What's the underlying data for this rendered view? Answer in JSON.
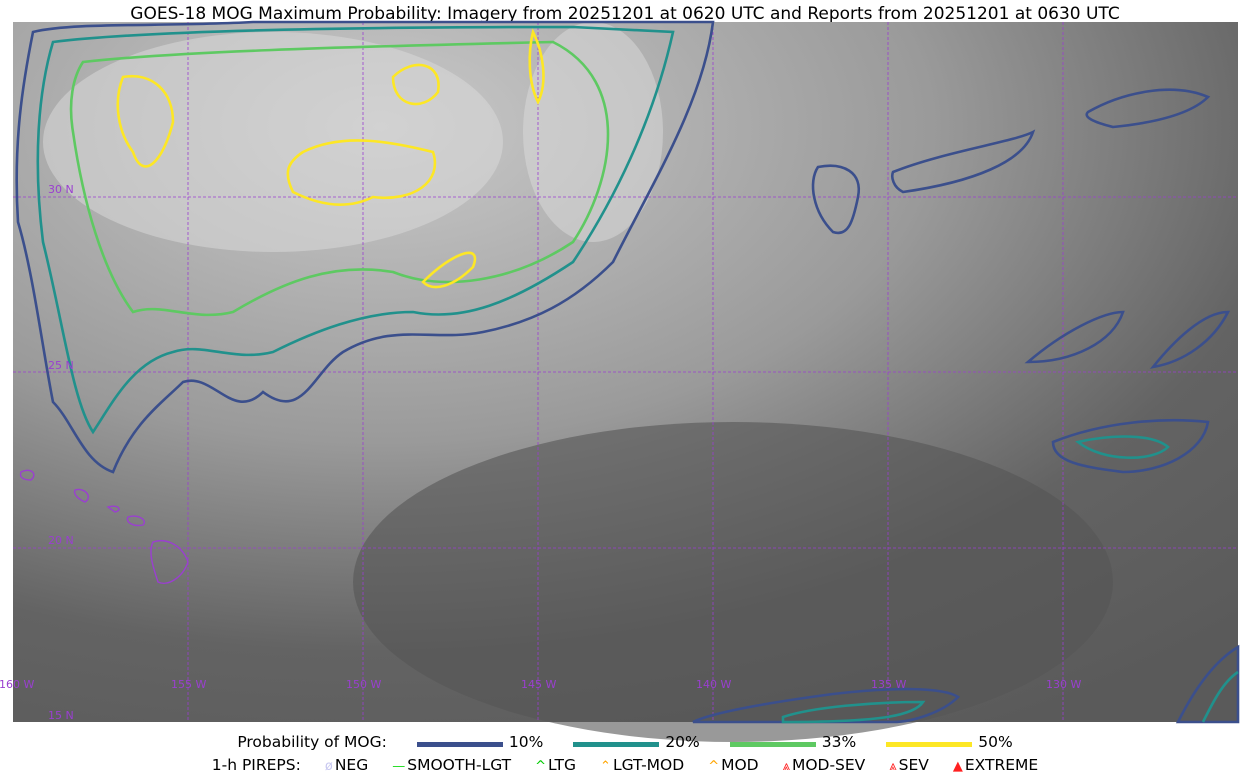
{
  "title": "GOES-18 MOG Maximum Probability: Imagery from 20251201 at 0620 UTC and Reports from 20251201 at 0630 UTC",
  "map": {
    "longitude_labels": [
      "160 W",
      "155 W",
      "150 W",
      "145 W",
      "140 W",
      "135 W",
      "130 W"
    ],
    "latitude_labels": [
      "30 N",
      "25 N",
      "20 N",
      "15 N"
    ],
    "grid_color": "#9a3fd0",
    "coastline_color": "#9a3fd0"
  },
  "legend": {
    "probability_label": "Probability of MOG:",
    "levels": [
      {
        "label": "10%",
        "color": "#3b4f8c"
      },
      {
        "label": "20%",
        "color": "#21918c"
      },
      {
        "label": "33%",
        "color": "#5ec962"
      },
      {
        "label": "50%",
        "color": "#fde725"
      }
    ],
    "pireps_label": "1-h PIREPS:",
    "pireps": [
      {
        "label": "NEG",
        "color": "#c8c8f0",
        "icon": "neg-icon"
      },
      {
        "label": "SMOOTH-LGT",
        "color": "#22dd22",
        "icon": "smooth-lgt-icon"
      },
      {
        "label": "LTG",
        "color": "#00cc00",
        "icon": "ltg-icon"
      },
      {
        "label": "LGT-MOD",
        "color": "#ffa500",
        "icon": "lgt-mod-icon"
      },
      {
        "label": "MOD",
        "color": "#ffa500",
        "icon": "mod-icon"
      },
      {
        "label": "MOD-SEV",
        "color": "#ff2020",
        "icon": "mod-sev-icon"
      },
      {
        "label": "SEV",
        "color": "#ff2020",
        "icon": "sev-icon"
      },
      {
        "label": "EXTREME",
        "color": "#ff2020",
        "icon": "extreme-icon"
      }
    ]
  }
}
